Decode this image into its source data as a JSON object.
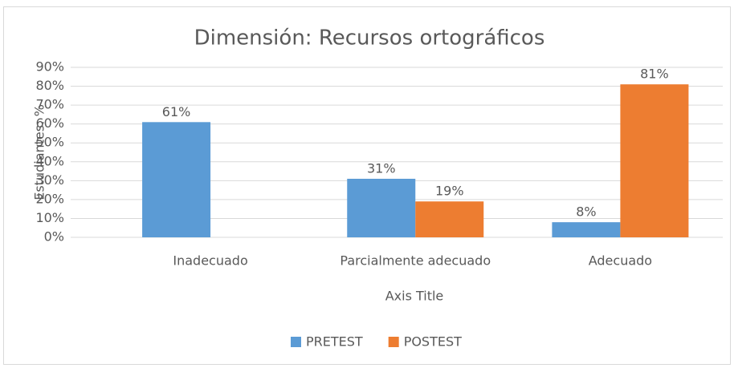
{
  "chart_data": {
    "type": "bar",
    "title": "Dimensión: Recursos ortográficos",
    "x_label": "Axis Title",
    "y_label": "Estudiantes: %",
    "categories": [
      "Inadecuado",
      "Parcialmente adecuado",
      "Adecuado"
    ],
    "series": [
      {
        "name": "PRETEST",
        "color": "#5b9bd5",
        "values": [
          61,
          31,
          8
        ],
        "value_labels": [
          "61%",
          "31%",
          "8%"
        ]
      },
      {
        "name": "POSTEST",
        "color": "#ed7d31",
        "values": [
          null,
          19,
          81
        ],
        "value_labels": [
          null,
          "19%",
          "81%"
        ]
      }
    ],
    "ylim": [
      0,
      90
    ],
    "yticks": [
      {
        "value": 0,
        "label": "0%"
      },
      {
        "value": 10,
        "label": "10%"
      },
      {
        "value": 20,
        "label": "20%"
      },
      {
        "value": 30,
        "label": "30%"
      },
      {
        "value": 40,
        "label": "40%"
      },
      {
        "value": 50,
        "label": "50%"
      },
      {
        "value": 60,
        "label": "60%"
      },
      {
        "value": 70,
        "label": "70%"
      },
      {
        "value": 80,
        "label": "80%"
      },
      {
        "value": 90,
        "label": "90%"
      }
    ],
    "grid": true,
    "legend": "bottom"
  }
}
